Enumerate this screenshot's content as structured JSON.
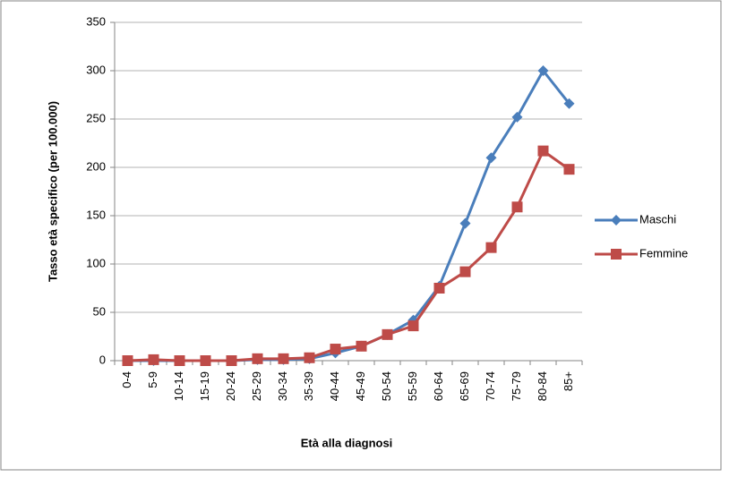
{
  "chart_data": {
    "type": "line",
    "x_label": "Età alla diagnosi",
    "y_label": "Tasso età specifico (per 100.000)",
    "categories": [
      "0-4",
      "5-9",
      "10-14",
      "15-19",
      "20-24",
      "25-29",
      "30-34",
      "35-39",
      "40-44",
      "45-49",
      "50-54",
      "55-59",
      "60-64",
      "65-69",
      "70-74",
      "75-79",
      "80-84",
      "85+"
    ],
    "series": [
      {
        "name": "Maschi",
        "color": "#4a7ebb",
        "marker": "diamond",
        "values": [
          0,
          0,
          0,
          0,
          0,
          1,
          1,
          2,
          8,
          15,
          27,
          42,
          77,
          142,
          210,
          252,
          300,
          266
        ]
      },
      {
        "name": "Femmine",
        "color": "#be4b48",
        "marker": "square",
        "values": [
          0,
          1,
          0,
          0,
          0,
          2,
          2,
          3,
          12,
          15,
          27,
          36,
          75,
          92,
          117,
          159,
          217,
          198
        ]
      }
    ],
    "ylim": [
      0,
      350
    ],
    "yticks": [
      0,
      50,
      100,
      150,
      200,
      250,
      300,
      350
    ],
    "grid": true,
    "legend": "right"
  }
}
